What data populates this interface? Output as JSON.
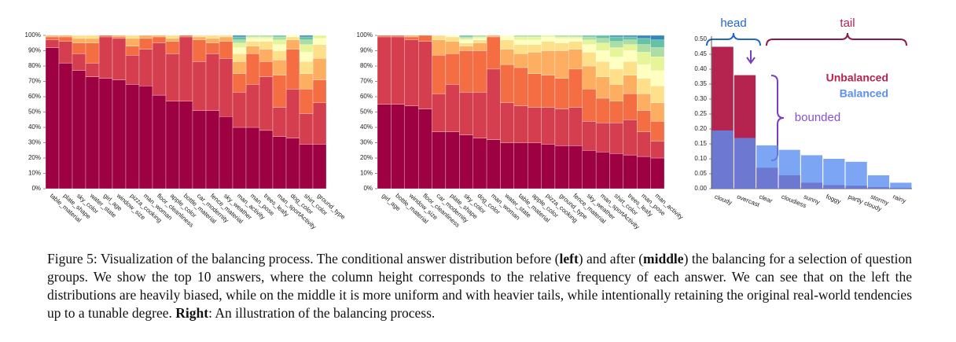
{
  "chart_data": [
    {
      "type": "bar",
      "stacked": true,
      "categories": [
        "table_material",
        "plate_shape",
        "sky_color",
        "water_state",
        "girl_age",
        "window_size",
        "pizza_cooking",
        "man_woman",
        "floor_cleanliness",
        "apple_color",
        "bottle_material",
        "car_modernity",
        "fence_material",
        "sky_weather",
        "man_activity",
        "man_pose",
        "trees_leafy",
        "man_sportActivity",
        "dog_color",
        "shirt_color",
        "ground_type"
      ],
      "ylim": [
        0,
        100
      ],
      "yticks": [
        {
          "value": 0,
          "label": "0%"
        },
        {
          "value": 10,
          "label": "10%"
        },
        {
          "value": 20,
          "label": "20%"
        },
        {
          "value": 30,
          "label": "30%"
        },
        {
          "value": 40,
          "label": "40%"
        },
        {
          "value": 50,
          "label": "50%"
        },
        {
          "value": 60,
          "label": "60%"
        },
        {
          "value": 70,
          "label": "70%"
        },
        {
          "value": 80,
          "label": "80%"
        },
        {
          "value": 90,
          "label": "90%"
        },
        {
          "value": 100,
          "label": "100%"
        }
      ],
      "series": [
        {
          "color": "#9e0142",
          "values": [
            92,
            82,
            77,
            73,
            72,
            71,
            68,
            67,
            61,
            57,
            57,
            51,
            51,
            47,
            40,
            40,
            38,
            34,
            33,
            29,
            29
          ]
        },
        {
          "color": "#d53e4f",
          "values": [
            5,
            14,
            11,
            9,
            27,
            27,
            19,
            24,
            34,
            31,
            42,
            32,
            37,
            38,
            23,
            28,
            35,
            19,
            32,
            20,
            27
          ]
        },
        {
          "color": "#f46d43",
          "values": [
            2,
            3,
            7,
            13,
            1,
            1,
            6,
            7,
            4,
            8,
            1,
            14,
            7,
            11,
            12,
            20,
            10,
            21,
            26,
            16,
            15
          ]
        },
        {
          "color": "#fdae61",
          "values": [
            1,
            1,
            3,
            3,
            0,
            1,
            5,
            2,
            1,
            2,
            0,
            2,
            3,
            3,
            8,
            5,
            8,
            10,
            6,
            10,
            14
          ]
        },
        {
          "color": "#fee08b",
          "values": [
            0,
            0,
            2,
            2,
            0,
            0,
            2,
            0,
            0,
            2,
            0,
            1,
            2,
            1,
            5,
            3,
            5,
            6,
            2,
            8,
            9
          ]
        },
        {
          "color": "#ffffbf",
          "values": [
            0,
            0,
            0,
            0,
            0,
            0,
            0,
            0,
            0,
            0,
            0,
            0,
            0,
            0,
            4,
            2,
            2,
            4,
            1,
            6,
            4
          ]
        },
        {
          "color": "#e6f598",
          "values": [
            0,
            0,
            0,
            0,
            0,
            0,
            0,
            0,
            0,
            0,
            0,
            0,
            0,
            0,
            3,
            1,
            1,
            3,
            0,
            5,
            2
          ]
        },
        {
          "color": "#abdda4",
          "values": [
            0,
            0,
            0,
            0,
            0,
            0,
            0,
            0,
            0,
            0,
            0,
            0,
            0,
            0,
            2,
            1,
            1,
            2,
            0,
            3,
            0
          ]
        },
        {
          "color": "#66c2a5",
          "values": [
            0,
            0,
            0,
            0,
            0,
            0,
            0,
            0,
            0,
            0,
            0,
            0,
            0,
            0,
            2,
            0,
            0,
            1,
            0,
            2,
            0
          ]
        },
        {
          "color": "#3288bd",
          "values": [
            0,
            0,
            0,
            0,
            0,
            0,
            0,
            0,
            0,
            0,
            0,
            0,
            0,
            0,
            1,
            0,
            0,
            0,
            0,
            1,
            0
          ]
        }
      ]
    },
    {
      "type": "bar",
      "stacked": true,
      "categories": [
        "girl_age",
        "bottle_material",
        "window_size",
        "floor_cleanliness",
        "car_modernity",
        "plate_shape",
        "sky_color",
        "dog_color",
        "man_woman",
        "water_state",
        "table_material",
        "apple_color",
        "pizza_cooking",
        "ground_type",
        "fence_material",
        "sky_weather",
        "man_sportActivity",
        "shirt_color",
        "trees_leafy",
        "man_pose",
        "man_activity"
      ],
      "ylim": [
        0,
        100
      ],
      "yticks": [
        {
          "value": 0,
          "label": "0%"
        },
        {
          "value": 10,
          "label": "10%"
        },
        {
          "value": 20,
          "label": "20%"
        },
        {
          "value": 30,
          "label": "30%"
        },
        {
          "value": 40,
          "label": "40%"
        },
        {
          "value": 50,
          "label": "50%"
        },
        {
          "value": 60,
          "label": "60%"
        },
        {
          "value": 70,
          "label": "70%"
        },
        {
          "value": 80,
          "label": "80%"
        },
        {
          "value": 90,
          "label": "90%"
        },
        {
          "value": 100,
          "label": "100%"
        }
      ],
      "series": [
        {
          "color": "#9e0142",
          "values": [
            55,
            55,
            54,
            52,
            37,
            37,
            35,
            33,
            32,
            30,
            30,
            30,
            29,
            28,
            28,
            25,
            24,
            23,
            22,
            21,
            20
          ]
        },
        {
          "color": "#d53e4f",
          "values": [
            44,
            44,
            43,
            44,
            25,
            31,
            28,
            30,
            46,
            26,
            24,
            23,
            24,
            24,
            25,
            19,
            19,
            20,
            23,
            16,
            11
          ]
        },
        {
          "color": "#f46d43",
          "values": [
            1,
            1,
            2,
            4,
            25,
            20,
            27,
            27,
            21,
            25,
            25,
            22,
            21,
            20,
            25,
            21,
            16,
            14,
            17,
            14,
            13
          ]
        },
        {
          "color": "#fdae61",
          "values": [
            0,
            0,
            1,
            0,
            10,
            8,
            3,
            5,
            1,
            10,
            9,
            14,
            16,
            18,
            13,
            15,
            14,
            11,
            12,
            11,
            12
          ]
        },
        {
          "color": "#fee08b",
          "values": [
            0,
            0,
            0,
            0,
            3,
            3,
            2,
            2,
            0,
            6,
            6,
            5,
            6,
            5,
            5,
            9,
            10,
            10,
            9,
            10,
            11
          ]
        },
        {
          "color": "#ffffbf",
          "values": [
            0,
            0,
            0,
            0,
            0,
            1,
            2,
            1,
            0,
            3,
            3,
            3,
            3,
            3,
            2,
            5,
            7,
            8,
            7,
            9,
            10
          ]
        },
        {
          "color": "#e6f598",
          "values": [
            0,
            0,
            0,
            0,
            0,
            0,
            1,
            1,
            0,
            0,
            2,
            2,
            1,
            1,
            1,
            3,
            5,
            6,
            4,
            8,
            9
          ]
        },
        {
          "color": "#abdda4",
          "values": [
            0,
            0,
            0,
            0,
            0,
            0,
            1,
            1,
            0,
            0,
            1,
            1,
            0,
            1,
            1,
            2,
            3,
            4,
            3,
            5,
            6
          ]
        },
        {
          "color": "#66c2a5",
          "values": [
            0,
            0,
            0,
            0,
            0,
            0,
            1,
            0,
            0,
            0,
            0,
            0,
            0,
            0,
            0,
            1,
            2,
            3,
            2,
            4,
            5
          ]
        },
        {
          "color": "#3288bd",
          "values": [
            0,
            0,
            0,
            0,
            0,
            0,
            0,
            0,
            0,
            0,
            0,
            0,
            0,
            0,
            0,
            0,
            0,
            1,
            1,
            2,
            3
          ]
        }
      ]
    },
    {
      "type": "bar",
      "stacked": false,
      "categories": [
        "cloudy",
        "overcast",
        "clear",
        "cloudiess",
        "sunny",
        "foggy",
        "partly cloudy",
        "stormy",
        "rainy"
      ],
      "ylim": [
        0,
        0.5
      ],
      "yticks": [
        {
          "value": 0,
          "label": "0.00"
        },
        {
          "value": 0.05,
          "label": "0.05"
        },
        {
          "value": 0.1,
          "label": "0.10"
        },
        {
          "value": 0.15,
          "label": "0.15"
        },
        {
          "value": 0.2,
          "label": "0.20"
        },
        {
          "value": 0.25,
          "label": "0.25"
        },
        {
          "value": 0.3,
          "label": "0.30"
        },
        {
          "value": 0.35,
          "label": "0.35"
        },
        {
          "value": 0.4,
          "label": "0.40"
        },
        {
          "value": 0.45,
          "label": "0.45"
        },
        {
          "value": 0.5,
          "label": "0.50"
        }
      ],
      "series": [
        {
          "name": "Unbalanced",
          "color": "#b5234f",
          "values": [
            0.475,
            0.38,
            0.07,
            0.045,
            0.02,
            0.012,
            0.01,
            0.005,
            0.003
          ]
        },
        {
          "name": "Balanced",
          "color": "#5b8ff0",
          "values": [
            0.195,
            0.17,
            0.145,
            0.13,
            0.112,
            0.1,
            0.09,
            0.045,
            0.02
          ]
        }
      ],
      "annotations": [
        "head",
        "tail",
        "bounded"
      ]
    }
  ],
  "caption": [
    "Figure 5: Visualization of the balancing process. The conditional answer distribution before (",
    "left",
    ") and after (",
    "middle",
    ") the balancing for a selection of question groups. We show the top 10 answers, where the column height corresponds to the relative frequency of each answer. We can see that on the left the distributions are heavily biased, while on the middle it is more uniform and with heavier tails, while intentionally retaining the original real-world tendencies up to a tunable degree. ",
    "Right",
    ": An illustration of the balancing process."
  ]
}
